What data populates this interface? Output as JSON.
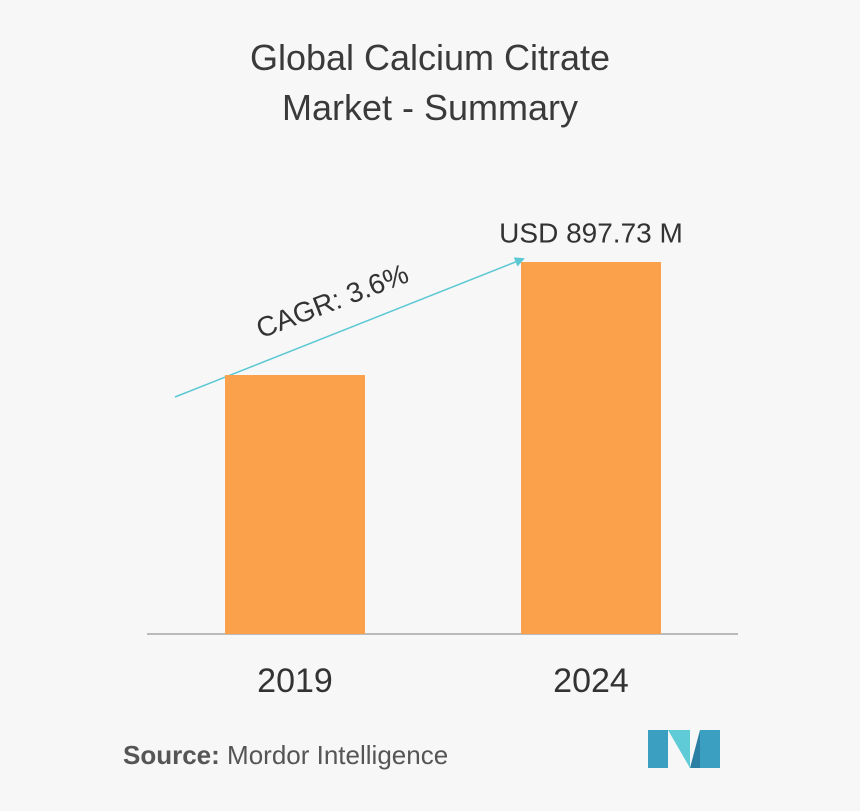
{
  "chart_data": {
    "type": "bar",
    "title": "Global Calcium Citrate Market - Summary",
    "categories": [
      "2019",
      "2024"
    ],
    "values": [
      625,
      897.73
    ],
    "value_labels": [
      null,
      "USD 897.73 M"
    ],
    "color": "#fba04b",
    "annotation": "CAGR: 3.6%",
    "source_label": "Source:",
    "source": "Mordor Intelligence"
  }
}
